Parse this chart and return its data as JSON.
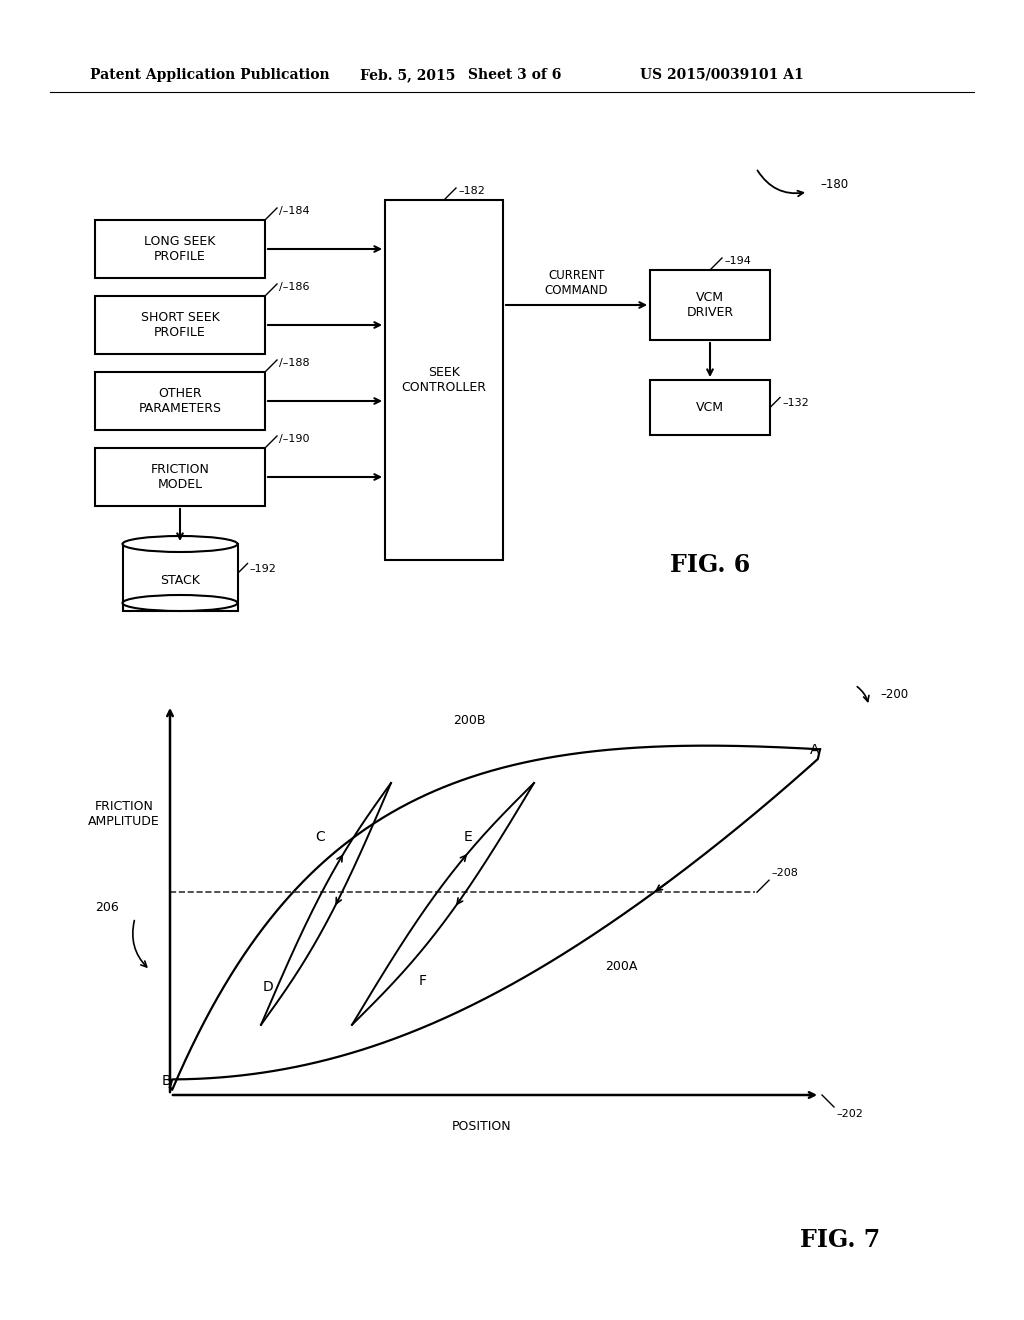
{
  "bg_color": "#ffffff",
  "header_text": "Patent Application Publication",
  "header_date": "Feb. 5, 2015",
  "header_sheet": "Sheet 3 of 6",
  "header_patent": "US 2015/0039101 A1",
  "text_color": "#000000",
  "line_color": "#000000"
}
